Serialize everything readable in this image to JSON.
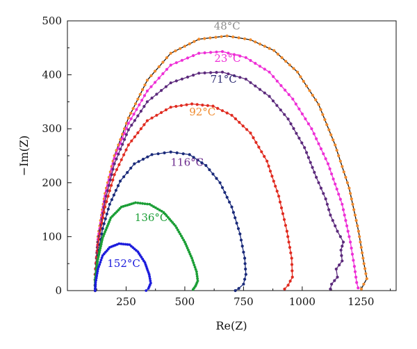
{
  "chart_data": {
    "type": "line",
    "xlabel": "Re(Z)",
    "ylabel": "−Im(Z)",
    "xlim": [
      0,
      1400
    ],
    "ylim": [
      0,
      500
    ],
    "x_ticks": [
      250,
      500,
      750,
      1000,
      1250
    ],
    "y_ticks": [
      0,
      100,
      200,
      300,
      400,
      500
    ],
    "grid": false,
    "series": [
      {
        "name": "48°C",
        "color": "#f08a2c",
        "label_color": "#8c8c8c",
        "label_at": [
          680,
          484
        ],
        "points": [
          [
            118,
            0
          ],
          [
            118,
            30
          ],
          [
            130,
            100
          ],
          [
            160,
            180
          ],
          [
            200,
            250
          ],
          [
            260,
            320
          ],
          [
            340,
            390
          ],
          [
            440,
            440
          ],
          [
            560,
            466
          ],
          [
            680,
            472
          ],
          [
            780,
            465
          ],
          [
            880,
            445
          ],
          [
            980,
            405
          ],
          [
            1070,
            345
          ],
          [
            1140,
            270
          ],
          [
            1200,
            190
          ],
          [
            1240,
            110
          ],
          [
            1263,
            50
          ],
          [
            1275,
            22
          ],
          [
            1262,
            12
          ],
          [
            1252,
            3
          ]
        ]
      },
      {
        "name": "23°C",
        "color": "#ee2fd6",
        "label_color": "#ee2fd6",
        "label_at": [
          682,
          424
        ],
        "points": [
          [
            118,
            0
          ],
          [
            118,
            30
          ],
          [
            130,
            95
          ],
          [
            160,
            175
          ],
          [
            200,
            245
          ],
          [
            260,
            310
          ],
          [
            340,
            370
          ],
          [
            440,
            418
          ],
          [
            560,
            440
          ],
          [
            660,
            443
          ],
          [
            760,
            432
          ],
          [
            860,
            405
          ],
          [
            960,
            355
          ],
          [
            1040,
            300
          ],
          [
            1110,
            235
          ],
          [
            1170,
            160
          ],
          [
            1205,
            90
          ],
          [
            1222,
            45
          ],
          [
            1232,
            15
          ],
          [
            1238,
            5
          ]
        ]
      },
      {
        "name": "71°C",
        "color": "#5c2a7c",
        "label_color": "#2e2d74",
        "label_at": [
          665,
          385
        ],
        "points": [
          [
            118,
            0
          ],
          [
            118,
            30
          ],
          [
            130,
            90
          ],
          [
            160,
            165
          ],
          [
            200,
            235
          ],
          [
            260,
            298
          ],
          [
            340,
            350
          ],
          [
            440,
            385
          ],
          [
            560,
            403
          ],
          [
            660,
            405
          ],
          [
            760,
            392
          ],
          [
            860,
            360
          ],
          [
            940,
            318
          ],
          [
            1010,
            265
          ],
          [
            1060,
            210
          ],
          [
            1100,
            170
          ],
          [
            1120,
            140
          ],
          [
            1150,
            110
          ],
          [
            1175,
            90
          ],
          [
            1165,
            75
          ],
          [
            1170,
            55
          ],
          [
            1145,
            40
          ],
          [
            1150,
            25
          ],
          [
            1125,
            12
          ],
          [
            1120,
            3
          ]
        ]
      },
      {
        "name": "92°C",
        "color": "#e02b20",
        "label_color": "#f08a2c",
        "label_at": [
          575,
          325
        ],
        "points": [
          [
            118,
            0
          ],
          [
            118,
            30
          ],
          [
            130,
            85
          ],
          [
            160,
            155
          ],
          [
            200,
            215
          ],
          [
            260,
            270
          ],
          [
            340,
            315
          ],
          [
            440,
            340
          ],
          [
            530,
            346
          ],
          [
            620,
            342
          ],
          [
            700,
            325
          ],
          [
            780,
            292
          ],
          [
            850,
            240
          ],
          [
            900,
            175
          ],
          [
            935,
            110
          ],
          [
            955,
            60
          ],
          [
            958,
            25
          ],
          [
            940,
            10
          ],
          [
            925,
            3
          ]
        ]
      },
      {
        "name": "116°C",
        "color": "#1a2a7a",
        "label_color": "#6a2a8c",
        "label_at": [
          510,
          231
        ],
        "points": [
          [
            118,
            0
          ],
          [
            118,
            20
          ],
          [
            130,
            65
          ],
          [
            150,
            115
          ],
          [
            180,
            160
          ],
          [
            225,
            203
          ],
          [
            285,
            235
          ],
          [
            360,
            252
          ],
          [
            440,
            257
          ],
          [
            520,
            252
          ],
          [
            590,
            232
          ],
          [
            650,
            200
          ],
          [
            700,
            155
          ],
          [
            735,
            105
          ],
          [
            755,
            60
          ],
          [
            760,
            30
          ],
          [
            750,
            12
          ],
          [
            730,
            4
          ],
          [
            715,
            0
          ]
        ]
      },
      {
        "name": "136°C",
        "color": "#1a9e35",
        "label_color": "#1a9e35",
        "label_at": [
          357,
          129
        ],
        "points": [
          [
            118,
            0
          ],
          [
            118,
            20
          ],
          [
            128,
            55
          ],
          [
            150,
            98
          ],
          [
            185,
            135
          ],
          [
            230,
            155
          ],
          [
            290,
            163
          ],
          [
            350,
            160
          ],
          [
            410,
            145
          ],
          [
            460,
            120
          ],
          [
            500,
            90
          ],
          [
            530,
            60
          ],
          [
            550,
            35
          ],
          [
            555,
            18
          ],
          [
            545,
            8
          ],
          [
            535,
            2
          ]
        ]
      },
      {
        "name": "152°C",
        "color": "#1c1cdc",
        "label_color": "#1c1cdc",
        "label_at": [
          240,
          44
        ],
        "points": [
          [
            118,
            0
          ],
          [
            120,
            15
          ],
          [
            130,
            40
          ],
          [
            150,
            65
          ],
          [
            180,
            80
          ],
          [
            220,
            87
          ],
          [
            265,
            85
          ],
          [
            300,
            72
          ],
          [
            330,
            52
          ],
          [
            348,
            30
          ],
          [
            355,
            14
          ],
          [
            345,
            4
          ],
          [
            335,
            0
          ]
        ]
      }
    ]
  }
}
